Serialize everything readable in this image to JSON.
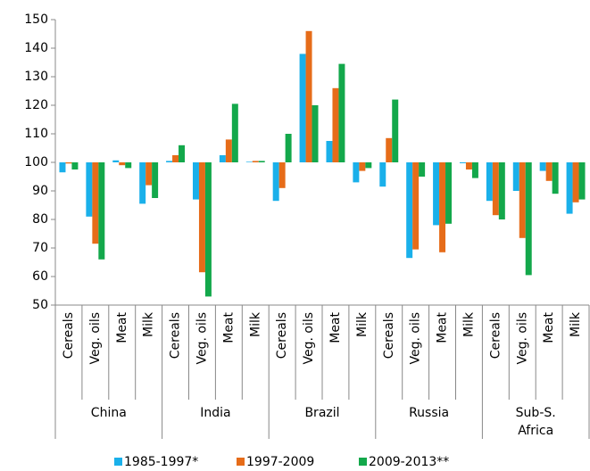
{
  "chart_data": {
    "type": "bar",
    "baseline": 100,
    "categories": [
      "Cereals",
      "Veg. oils",
      "Meat",
      "Milk",
      "Cereals",
      "Veg. oils",
      "Meat",
      "Milk",
      "Cereals",
      "Veg. oils",
      "Meat",
      "Milk",
      "Cereals",
      "Veg. oils",
      "Meat",
      "Milk",
      "Cereals",
      "Veg. oils",
      "Meat",
      "Milk"
    ],
    "category_groups": [
      "China",
      "India",
      "Brazil",
      "Russia",
      "Sub-S. Africa"
    ],
    "series": [
      {
        "name": "1985-1997*",
        "color": "#1ab0ea",
        "values": [
          96.5,
          81,
          100.7,
          85.5,
          100.5,
          87,
          102.5,
          100.2,
          86.5,
          138,
          107.5,
          93,
          91.5,
          66.5,
          78,
          99.7,
          86.5,
          90,
          97,
          82
        ]
      },
      {
        "name": "1997-2009",
        "color": "#e66c19",
        "values": [
          99.6,
          71.5,
          99,
          92,
          102.5,
          61.5,
          108,
          100.5,
          91,
          146,
          126,
          97,
          108.5,
          69.5,
          68.5,
          97.5,
          81.5,
          73.5,
          93.5,
          86
        ]
      },
      {
        "name": "2009-2013**",
        "color": "#13a84b",
        "values": [
          97.5,
          66,
          98,
          87.5,
          106,
          53,
          120.5,
          100.5,
          110,
          120,
          134.5,
          98,
          122,
          95,
          78.5,
          94.5,
          80,
          60.5,
          89,
          87
        ]
      }
    ],
    "ylim": [
      50,
      150
    ],
    "yticks": [
      50,
      60,
      70,
      80,
      90,
      100,
      110,
      120,
      130,
      140,
      150
    ],
    "legend": "bottom"
  }
}
